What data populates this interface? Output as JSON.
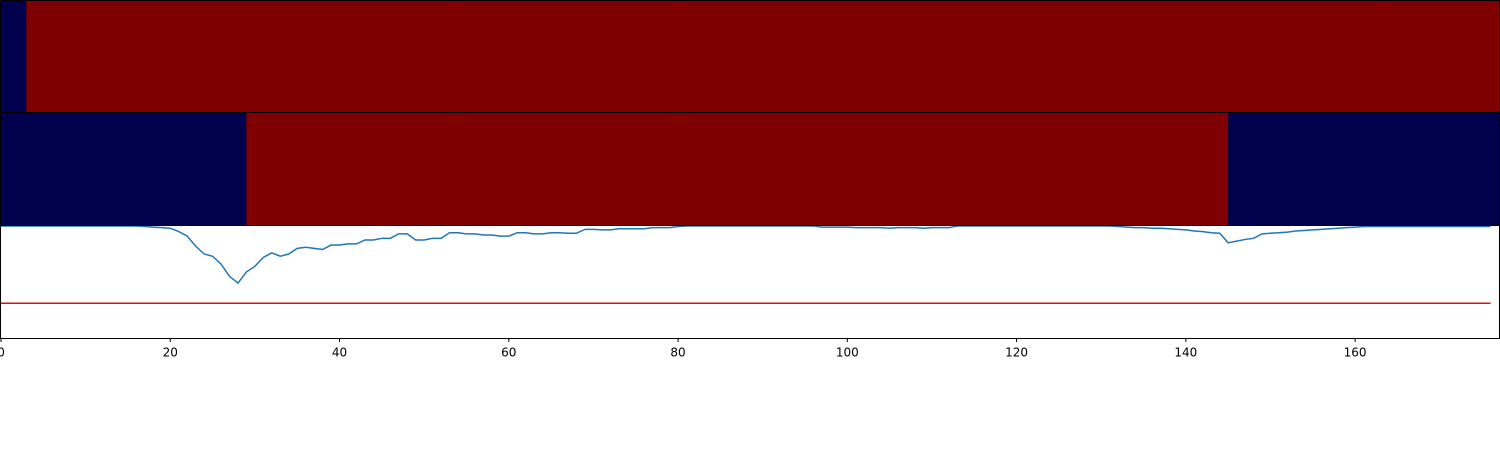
{
  "chart_data": [
    {
      "type": "heatmap",
      "xlim": [
        0,
        177
      ],
      "colors": [
        "#00004c",
        "#7f0000"
      ],
      "values": [
        0,
        0,
        0,
        1,
        1,
        1,
        1,
        1,
        1,
        1,
        1,
        1,
        1,
        1,
        1,
        1,
        1,
        1,
        1,
        1,
        1,
        1,
        1,
        1,
        1,
        1,
        1,
        1,
        1,
        1,
        1,
        1,
        1,
        1,
        1,
        1,
        1,
        1,
        1,
        1,
        1,
        1,
        1,
        1,
        1,
        1,
        1,
        1,
        1,
        1,
        1,
        1,
        1,
        1,
        1,
        1,
        1,
        1,
        1,
        1,
        1,
        1,
        1,
        1,
        1,
        1,
        1,
        1,
        1,
        1,
        1,
        1,
        1,
        1,
        1,
        1,
        1,
        1,
        1,
        1,
        1,
        1,
        1,
        1,
        1,
        1,
        1,
        1,
        1,
        1,
        1,
        1,
        1,
        1,
        1,
        1,
        1,
        1,
        1,
        1,
        1,
        1,
        1,
        1,
        1,
        1,
        1,
        1,
        1,
        1,
        1,
        1,
        1,
        1,
        1,
        1,
        1,
        1,
        1,
        1,
        1,
        1,
        1,
        1,
        1,
        1,
        1,
        1,
        1,
        1,
        1,
        1,
        1,
        1,
        1,
        1,
        1,
        1,
        1,
        1,
        1,
        1,
        1,
        1,
        1,
        1,
        1,
        1,
        1,
        1,
        1,
        1,
        1,
        1,
        1,
        1,
        1,
        1,
        1,
        1,
        1,
        1,
        1,
        1,
        1,
        1,
        1,
        1,
        1,
        1,
        1,
        1,
        1,
        1,
        1,
        1,
        1
      ]
    },
    {
      "type": "heatmap",
      "xlim": [
        0,
        177
      ],
      "colors": [
        "#00004c",
        "#7f0000"
      ],
      "values": [
        0,
        0,
        0,
        0,
        0,
        0,
        0,
        0,
        0,
        0,
        0,
        0,
        0,
        0,
        0,
        0,
        0,
        0,
        0,
        0,
        0,
        0,
        0,
        0,
        0,
        0,
        0,
        0,
        0,
        1,
        1,
        1,
        1,
        1,
        1,
        1,
        1,
        1,
        1,
        1,
        1,
        1,
        1,
        1,
        1,
        1,
        1,
        1,
        1,
        1,
        1,
        1,
        1,
        1,
        1,
        1,
        1,
        1,
        1,
        1,
        1,
        1,
        1,
        1,
        1,
        1,
        1,
        1,
        1,
        1,
        1,
        1,
        1,
        1,
        1,
        1,
        1,
        1,
        1,
        1,
        1,
        1,
        1,
        1,
        1,
        1,
        1,
        1,
        1,
        1,
        1,
        1,
        1,
        1,
        1,
        1,
        1,
        1,
        1,
        1,
        1,
        1,
        1,
        1,
        1,
        1,
        1,
        1,
        1,
        1,
        1,
        1,
        1,
        1,
        1,
        1,
        1,
        1,
        1,
        1,
        1,
        1,
        1,
        1,
        1,
        1,
        1,
        1,
        1,
        1,
        1,
        1,
        1,
        1,
        1,
        1,
        1,
        1,
        1,
        1,
        1,
        1,
        1,
        1,
        1,
        0,
        0,
        0,
        0,
        0,
        0,
        0,
        0,
        0,
        0,
        0,
        0,
        0,
        0,
        0,
        0,
        0,
        0,
        0,
        0,
        0,
        0,
        0,
        0,
        0,
        0,
        0,
        0,
        0,
        0,
        0,
        0
      ]
    },
    {
      "type": "line",
      "xlim": [
        0,
        177
      ],
      "ylim": [
        0,
        1
      ],
      "xticks": [
        0,
        20,
        40,
        60,
        80,
        100,
        120,
        140,
        160
      ],
      "color": "#1f77b4",
      "threshold": 0.31,
      "threshold_color": "#e01010",
      "x": [
        0,
        1,
        2,
        3,
        4,
        5,
        6,
        7,
        8,
        9,
        10,
        11,
        12,
        13,
        14,
        15,
        16,
        17,
        18,
        19,
        20,
        21,
        22,
        23,
        24,
        25,
        26,
        27,
        28,
        29,
        30,
        31,
        32,
        33,
        34,
        35,
        36,
        37,
        38,
        39,
        40,
        41,
        42,
        43,
        44,
        45,
        46,
        47,
        48,
        49,
        50,
        51,
        52,
        53,
        54,
        55,
        56,
        57,
        58,
        59,
        60,
        61,
        62,
        63,
        64,
        65,
        66,
        67,
        68,
        69,
        70,
        71,
        72,
        73,
        74,
        75,
        76,
        77,
        78,
        79,
        80,
        81,
        82,
        83,
        84,
        85,
        86,
        87,
        88,
        89,
        90,
        91,
        92,
        93,
        94,
        95,
        96,
        97,
        98,
        99,
        100,
        101,
        102,
        103,
        104,
        105,
        106,
        107,
        108,
        109,
        110,
        111,
        112,
        113,
        114,
        115,
        116,
        117,
        118,
        119,
        120,
        121,
        122,
        123,
        124,
        125,
        126,
        127,
        128,
        129,
        130,
        131,
        132,
        133,
        134,
        135,
        136,
        137,
        138,
        139,
        140,
        141,
        142,
        143,
        144,
        145,
        146,
        147,
        148,
        149,
        150,
        151,
        152,
        153,
        154,
        155,
        156,
        157,
        158,
        159,
        160,
        161,
        162,
        163,
        164,
        165,
        166,
        167,
        168,
        169,
        170,
        171,
        172,
        173,
        174,
        175,
        176
      ],
      "values": [
        1,
        1,
        1,
        1,
        1,
        1,
        1,
        1,
        1,
        1,
        1,
        1,
        1,
        1,
        1,
        1,
        1,
        0.995,
        0.99,
        0.985,
        0.98,
        0.95,
        0.91,
        0.82,
        0.75,
        0.73,
        0.66,
        0.55,
        0.49,
        0.59,
        0.64,
        0.72,
        0.76,
        0.73,
        0.75,
        0.8,
        0.81,
        0.8,
        0.79,
        0.83,
        0.83,
        0.84,
        0.84,
        0.875,
        0.875,
        0.89,
        0.89,
        0.93,
        0.93,
        0.875,
        0.875,
        0.89,
        0.89,
        0.94,
        0.94,
        0.93,
        0.93,
        0.92,
        0.92,
        0.91,
        0.91,
        0.94,
        0.94,
        0.93,
        0.93,
        0.94,
        0.94,
        0.935,
        0.935,
        0.97,
        0.97,
        0.965,
        0.965,
        0.975,
        0.975,
        0.975,
        0.975,
        0.985,
        0.985,
        0.985,
        0.995,
        1,
        1,
        1,
        1,
        1,
        1,
        1,
        1,
        1,
        1,
        1,
        1,
        1,
        1,
        1,
        1,
        0.99,
        0.99,
        0.99,
        0.99,
        0.985,
        0.985,
        0.985,
        0.985,
        0.98,
        0.985,
        0.985,
        0.985,
        0.98,
        0.985,
        0.985,
        0.985,
        1,
        1,
        1,
        1,
        1,
        1,
        1,
        1,
        1,
        1,
        1,
        1,
        1,
        1,
        1,
        1,
        1,
        1,
        1,
        0.995,
        0.99,
        0.985,
        0.985,
        0.98,
        0.98,
        0.975,
        0.97,
        0.965,
        0.955,
        0.95,
        0.94,
        0.935,
        0.85,
        0.865,
        0.88,
        0.89,
        0.93,
        0.935,
        0.94,
        0.945,
        0.955,
        0.96,
        0.965,
        0.97,
        0.975,
        0.98,
        0.985,
        0.99,
        0.995,
        0.995,
        0.995,
        0.995,
        0.995,
        0.995,
        0.995,
        0.995,
        0.995,
        0.995,
        0.995,
        0.995,
        0.995,
        0.995,
        0.995,
        0.995
      ]
    }
  ]
}
